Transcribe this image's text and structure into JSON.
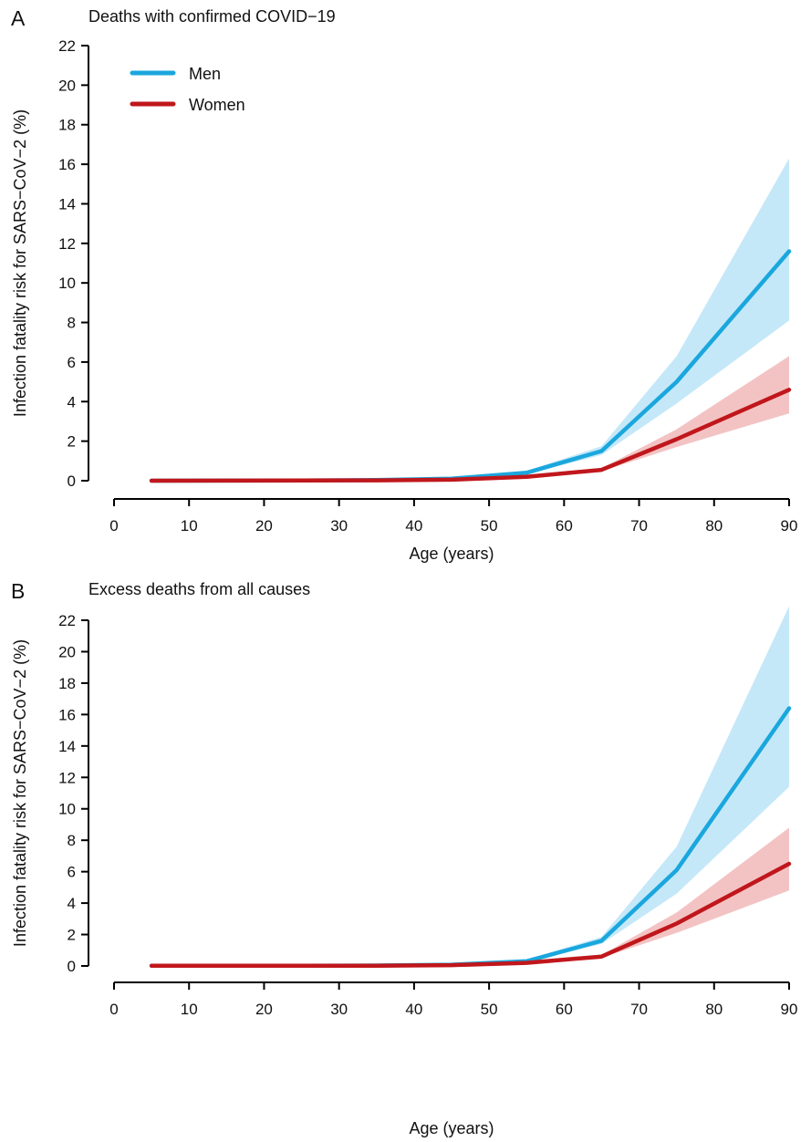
{
  "chart_data": [
    {
      "type": "line",
      "panel_letter": "A",
      "title": "Deaths with confirmed COVID−19",
      "xlabel": "Age (years)",
      "ylabel": "Infection fatality risk for SARS−CoV−2 (%)",
      "xlim": [
        0,
        90
      ],
      "ylim": [
        0,
        22
      ],
      "xticks": [
        0,
        10,
        20,
        30,
        40,
        50,
        60,
        70,
        80,
        90
      ],
      "yticks": [
        0,
        2,
        4,
        6,
        8,
        10,
        12,
        14,
        16,
        18,
        20,
        22
      ],
      "grid": false,
      "legend_position": "top-left",
      "x": [
        5,
        15,
        25,
        35,
        45,
        55,
        65,
        75,
        90
      ],
      "series": [
        {
          "name": "Men",
          "color": "#1aa7dd",
          "band_color": "#bfe6f8",
          "values": [
            0.001,
            0.005,
            0.01,
            0.03,
            0.1,
            0.4,
            1.5,
            5.0,
            11.6
          ],
          "lower": [
            0.0,
            0.003,
            0.007,
            0.02,
            0.08,
            0.32,
            1.3,
            3.9,
            8.1
          ],
          "upper": [
            0.003,
            0.008,
            0.015,
            0.045,
            0.14,
            0.5,
            1.75,
            6.3,
            16.3
          ]
        },
        {
          "name": "Women",
          "color": "#c0171c",
          "band_color": "#f2bcbc",
          "values": [
            0.001,
            0.003,
            0.007,
            0.02,
            0.05,
            0.2,
            0.55,
            2.1,
            4.6
          ],
          "lower": [
            0.0,
            0.002,
            0.005,
            0.015,
            0.04,
            0.16,
            0.48,
            1.7,
            3.4
          ],
          "upper": [
            0.002,
            0.005,
            0.01,
            0.03,
            0.07,
            0.25,
            0.63,
            2.6,
            6.3
          ]
        }
      ]
    },
    {
      "type": "line",
      "panel_letter": "B",
      "title": "Excess deaths from all causes",
      "xlabel": "Age (years)",
      "ylabel": "Infection fatality risk for SARS−CoV−2 (%)",
      "xlim": [
        0,
        90
      ],
      "ylim": [
        0,
        22
      ],
      "xticks": [
        0,
        10,
        20,
        30,
        40,
        50,
        60,
        70,
        80,
        90
      ],
      "yticks": [
        0,
        2,
        4,
        6,
        8,
        10,
        12,
        14,
        16,
        18,
        20,
        22
      ],
      "grid": false,
      "x": [
        5,
        15,
        25,
        35,
        45,
        55,
        65,
        75,
        90
      ],
      "series": [
        {
          "name": "Men",
          "color": "#1aa7dd",
          "band_color": "#bfe6f8",
          "values": [
            0.02,
            0.01,
            0.01,
            0.03,
            0.08,
            0.3,
            1.6,
            6.1,
            16.4
          ],
          "lower": [
            0.0,
            0.0,
            0.0,
            0.01,
            0.05,
            0.22,
            1.4,
            4.6,
            11.4
          ],
          "upper": [
            0.05,
            0.03,
            0.03,
            0.05,
            0.12,
            0.4,
            1.85,
            7.6,
            22.9
          ]
        },
        {
          "name": "Women",
          "color": "#c0171c",
          "band_color": "#f2bcbc",
          "values": [
            0.01,
            0.01,
            0.01,
            0.02,
            0.05,
            0.2,
            0.6,
            2.7,
            6.5
          ],
          "lower": [
            0.0,
            0.0,
            0.0,
            0.01,
            0.03,
            0.15,
            0.52,
            2.1,
            4.8
          ],
          "upper": [
            0.03,
            0.02,
            0.02,
            0.04,
            0.08,
            0.27,
            0.7,
            3.4,
            8.8
          ]
        }
      ]
    }
  ]
}
